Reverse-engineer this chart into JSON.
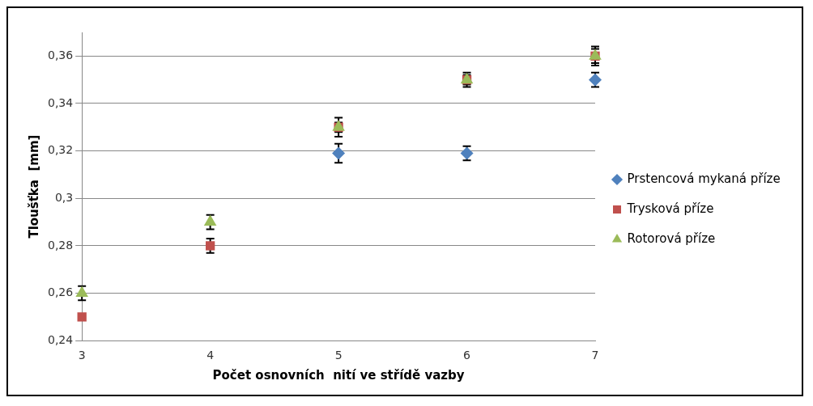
{
  "chart_data": {
    "type": "scatter",
    "xlabel": "Počet osnovních  nití ve střídě vazby",
    "ylabel": "Tloušťka  [mm]",
    "xlim": [
      3,
      7
    ],
    "xticks": [
      3,
      4,
      5,
      6,
      7
    ],
    "ylim": [
      0.24,
      0.37
    ],
    "yticks": [
      {
        "value": 0.24,
        "label": "0,24"
      },
      {
        "value": 0.26,
        "label": "0,26"
      },
      {
        "value": 0.28,
        "label": "0,28"
      },
      {
        "value": 0.3,
        "label": "0,3"
      },
      {
        "value": 0.32,
        "label": "0,32"
      },
      {
        "value": 0.34,
        "label": "0,34"
      },
      {
        "value": 0.36,
        "label": "0,36"
      }
    ],
    "grid": "y",
    "legend": "right",
    "x": [
      3,
      4,
      5,
      6,
      7
    ],
    "series": [
      {
        "name": "Prstencová mykaná příze",
        "color": "#4f81bd",
        "marker": "diamond",
        "values": [
          null,
          null,
          0.319,
          0.319,
          0.35
        ],
        "errors": [
          null,
          null,
          0.004,
          0.003,
          0.003
        ]
      },
      {
        "name": "Trysková příze",
        "color": "#c0504d",
        "marker": "square",
        "values": [
          0.25,
          0.28,
          0.33,
          0.35,
          0.36
        ],
        "errors": [
          null,
          0.003,
          0.004,
          0.003,
          0.004
        ]
      },
      {
        "name": "Rotorová příze",
        "color": "#9bbb59",
        "marker": "triangle",
        "values": [
          0.26,
          0.29,
          0.33,
          0.35,
          0.36
        ],
        "errors": [
          0.003,
          0.003,
          0.002,
          0.002,
          0.003
        ]
      }
    ]
  }
}
